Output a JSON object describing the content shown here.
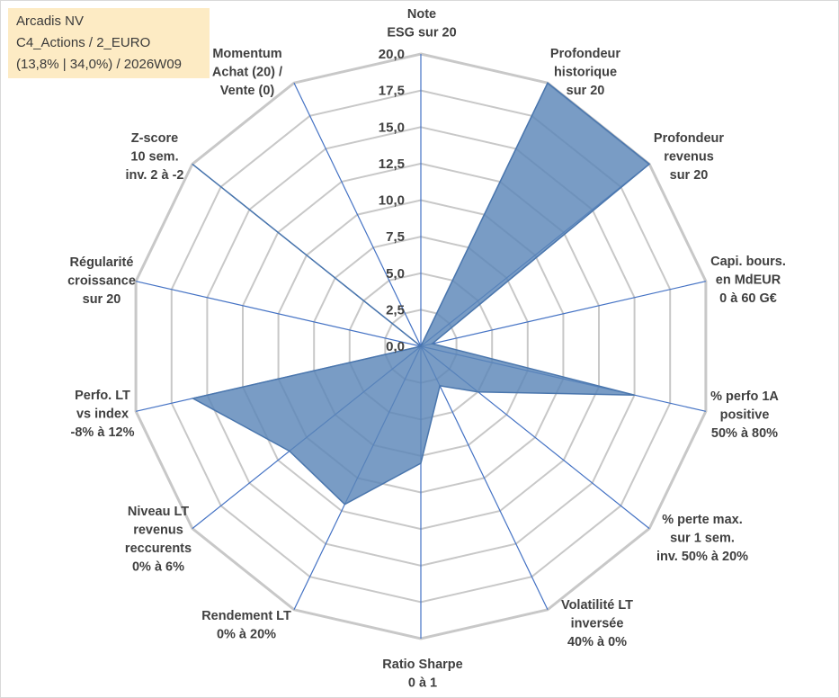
{
  "info": {
    "line1": "Arcadis NV",
    "line2": "C4_Actions / 2_EURO",
    "line3": "(13,8% | 34,0%) / 2026W09"
  },
  "colors": {
    "fill": "#5b86b8",
    "stroke": "#4a76ad",
    "grid": "#c8c8c8",
    "spoke": "#4472c4"
  },
  "chart_data": {
    "type": "radar",
    "title": "",
    "rmax": 20,
    "ticks": [
      "0,0",
      "2,5",
      "5,0",
      "7,5",
      "10,0",
      "12,5",
      "15,0",
      "17,5",
      "20,0"
    ],
    "axes": [
      {
        "label": [
          "Note",
          "ESG sur 20"
        ],
        "value": 0
      },
      {
        "label": [
          "Profondeur",
          "historique",
          "sur 20"
        ],
        "value": 20
      },
      {
        "label": [
          "Profondeur",
          "revenus",
          "sur 20"
        ],
        "value": 20
      },
      {
        "label": [
          "Capi. bours.",
          "en MdEUR",
          "0 à 60 G€"
        ],
        "value": 0.8
      },
      {
        "label": [
          "% perfo 1A",
          "positive",
          "50% à 80%"
        ],
        "value": 15
      },
      {
        "label": [
          "% perte max.",
          "sur 1 sem.",
          "inv. 50% à 20%"
        ],
        "value": 5
      },
      {
        "label": [
          "Volatilité LT",
          "inversée",
          "40% à 0%"
        ],
        "value": 3
      },
      {
        "label": [
          "Ratio Sharpe",
          "0 à 1"
        ],
        "value": 8
      },
      {
        "label": [
          "Rendement LT",
          "0% à 20%"
        ],
        "value": 12
      },
      {
        "label": [
          "Niveau LT",
          "revenus",
          "reccurents",
          "0% à 6%"
        ],
        "value": 11.5
      },
      {
        "label": [
          "Perfo. LT",
          "vs index",
          "-8% à 12%"
        ],
        "value": 16
      },
      {
        "label": [
          "Régularité",
          "croissance",
          "sur 20"
        ],
        "value": 0
      },
      {
        "label": [
          "Z-score",
          "10 sem.",
          "inv. 2 à -2"
        ],
        "value": 20
      },
      {
        "label": [
          "Momentum",
          "Achat (20) /",
          "Vente (0)"
        ],
        "value": 0
      }
    ]
  }
}
